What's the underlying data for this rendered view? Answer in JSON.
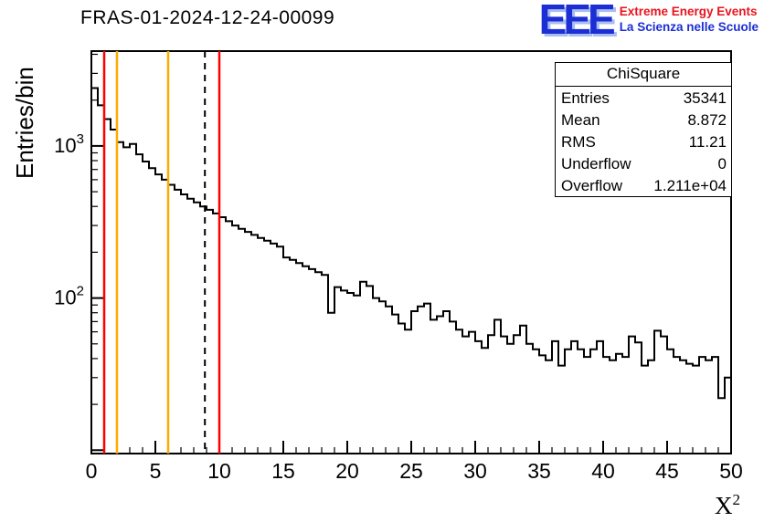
{
  "page": {
    "title": "FRAS-01-2024-12-24-00099"
  },
  "logo": {
    "acronym": "EEE",
    "line1": "Extreme Energy Events",
    "line2": "La Scienza nelle Scuole",
    "acronym_color": "#1b2fd4",
    "acronym_shadow": "#a9bdf0",
    "line1_color": "#e8141e",
    "line2_color": "#1b2fd4"
  },
  "axes": {
    "ylabel": "Entries/bin",
    "xlabel_base": "X",
    "xlabel_exp": "2"
  },
  "stats": {
    "title": "ChiSquare",
    "rows": [
      {
        "label": "Entries",
        "value": "35341"
      },
      {
        "label": "Mean",
        "value": "8.872"
      },
      {
        "label": "RMS",
        "value": "11.21"
      },
      {
        "label": "Underflow",
        "value": "0"
      },
      {
        "label": "Overflow",
        "value": "1.211e+04"
      }
    ]
  },
  "chart_data": {
    "type": "bar",
    "style": "step-histogram",
    "title": "FRAS-01-2024-12-24-00099",
    "xlabel": "X^2",
    "ylabel": "Entries/bin",
    "yscale": "log",
    "xlim": [
      0,
      50
    ],
    "ylim": [
      9.5,
      4200
    ],
    "bin_start": 0,
    "bin_width": 0.5,
    "x_major_step": 5,
    "x_minor_step": 1,
    "x_ticks_major": [
      0,
      5,
      10,
      15,
      20,
      25,
      30,
      35,
      40,
      45,
      50
    ],
    "y_ticks_labeled": [
      100,
      1000
    ],
    "line_color": "#000000",
    "values": [
      2400,
      1850,
      1500,
      1280,
      1060,
      980,
      1030,
      880,
      790,
      715,
      650,
      600,
      555,
      515,
      480,
      450,
      425,
      400,
      380,
      360,
      340,
      320,
      300,
      285,
      272,
      260,
      248,
      238,
      228,
      218,
      185,
      178,
      170,
      162,
      155,
      148,
      142,
      80,
      118,
      112,
      108,
      104,
      128,
      120,
      100,
      95,
      88,
      78,
      68,
      62,
      82,
      88,
      92,
      72,
      76,
      82,
      70,
      62,
      56,
      60,
      52,
      47,
      57,
      72,
      56,
      50,
      57,
      66,
      50,
      46,
      42,
      39,
      52,
      36,
      46,
      52,
      46,
      41,
      46,
      52,
      41,
      39,
      43,
      41,
      56,
      51,
      36,
      39,
      61,
      56,
      46,
      41,
      39,
      37,
      36,
      41,
      39,
      41,
      22,
      30
    ],
    "vlines": [
      {
        "x": 1,
        "color": "#ff0000",
        "dash": false
      },
      {
        "x": 2,
        "color": "#ffaa00",
        "dash": false
      },
      {
        "x": 6,
        "color": "#ffaa00",
        "dash": false
      },
      {
        "x": 8.872,
        "color": "#000000",
        "dash": true
      },
      {
        "x": 10,
        "color": "#ff0000",
        "dash": false
      }
    ]
  }
}
